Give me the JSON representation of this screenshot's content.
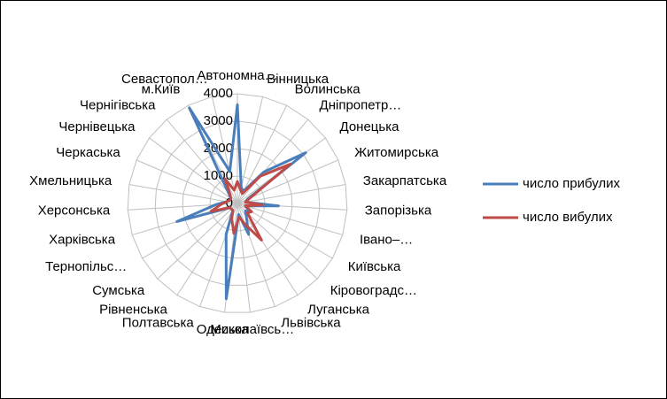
{
  "chart_data": {
    "type": "radar",
    "categories": [
      "Автономна…",
      "Вінницька",
      "Волинська",
      "Дніпропетр…",
      "Донецька",
      "Житомирська",
      "Закарпатська",
      "Запорізька",
      "Івано–…",
      "Київська",
      "Кіровоградс…",
      "Луганська",
      "Львівська",
      "Миколаївсь…",
      "Одеська",
      "Полтавська",
      "Рівненська",
      "Сумська",
      "Тернопільс…",
      "Харківська",
      "Херсонська",
      "Хмельницька",
      "Черкаська",
      "Чернівецька",
      "Чернігівська",
      "м.Київ",
      "Севастопол…"
    ],
    "series": [
      {
        "name": "число прибулих",
        "color": "#4a7ebb",
        "values": [
          3600,
          600,
          500,
          1500,
          3100,
          400,
          300,
          1500,
          300,
          500,
          400,
          600,
          1200,
          400,
          3500,
          1200,
          300,
          300,
          300,
          2300,
          800,
          400,
          300,
          300,
          500,
          3900,
          1200
        ]
      },
      {
        "name": "число вибулих",
        "color": "#be4b48",
        "values": [
          800,
          500,
          400,
          1300,
          2400,
          500,
          300,
          900,
          300,
          600,
          500,
          1600,
          800,
          500,
          1100,
          600,
          300,
          300,
          300,
          1000,
          600,
          400,
          300,
          300,
          400,
          1000,
          500
        ]
      }
    ],
    "ylim": [
      0,
      4000
    ],
    "yticks": [
      0,
      1000,
      2000,
      3000,
      4000
    ],
    "grid": true,
    "legend": "right"
  }
}
